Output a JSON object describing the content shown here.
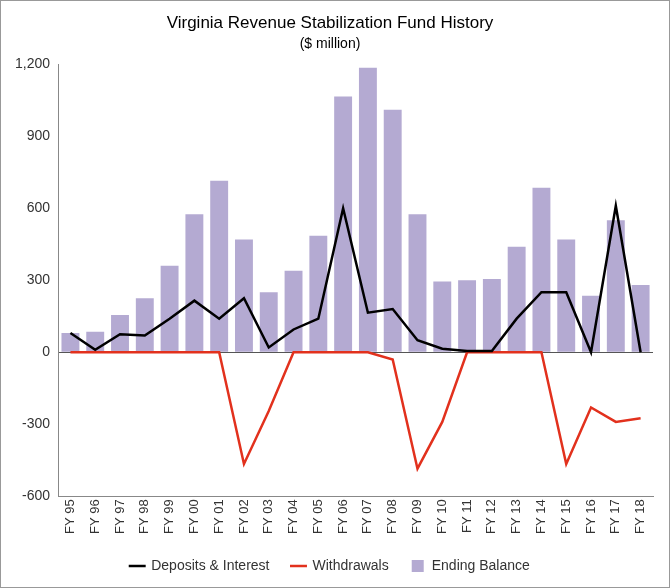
{
  "chart_data": {
    "type": "bar",
    "title": "Virginia Revenue Stabilization Fund History",
    "subtitle": "($ million)",
    "categories": [
      "FY 95",
      "FY 96",
      "FY 97",
      "FY 98",
      "FY 99",
      "FY 00",
      "FY 01",
      "FY 02",
      "FY 03",
      "FY 04",
      "FY 05",
      "FY 06",
      "FY 07",
      "FY 08",
      "FY 09",
      "FY 10",
      "FY 11",
      "FY 12",
      "FY 13",
      "FY 14",
      "FY 15",
      "FY 16",
      "FY 17",
      "FY 18"
    ],
    "series": [
      {
        "name": "Ending Balance",
        "type": "bar",
        "color": "#b4aad2",
        "values": [
          80,
          85,
          155,
          225,
          360,
          575,
          715,
          470,
          250,
          340,
          485,
          1065,
          1185,
          1010,
          575,
          295,
          300,
          305,
          440,
          685,
          470,
          235,
          550,
          280
        ]
      },
      {
        "name": "Deposits & Interest",
        "type": "line",
        "color": "#000000",
        "line_style": "solid",
        "marker": "none",
        "values": [
          80,
          10,
          75,
          70,
          140,
          215,
          140,
          225,
          20,
          95,
          140,
          600,
          165,
          180,
          50,
          15,
          5,
          5,
          140,
          250,
          250,
          0,
          610,
          0
        ]
      },
      {
        "name": "Withdrawals",
        "type": "line",
        "color": "#e2311d",
        "line_style": "solid",
        "marker": "none",
        "values": [
          0,
          0,
          0,
          0,
          0,
          0,
          0,
          -465,
          -245,
          0,
          0,
          0,
          0,
          -30,
          -485,
          -290,
          0,
          0,
          0,
          0,
          -465,
          -230,
          -290,
          -275
        ]
      }
    ],
    "ylim": [
      -600,
      1200
    ],
    "yticks": [
      -600,
      -300,
      0,
      300,
      600,
      900,
      {
        "value": 1200,
        "label": "1,200"
      }
    ],
    "grid": false,
    "legend": "bottom"
  }
}
